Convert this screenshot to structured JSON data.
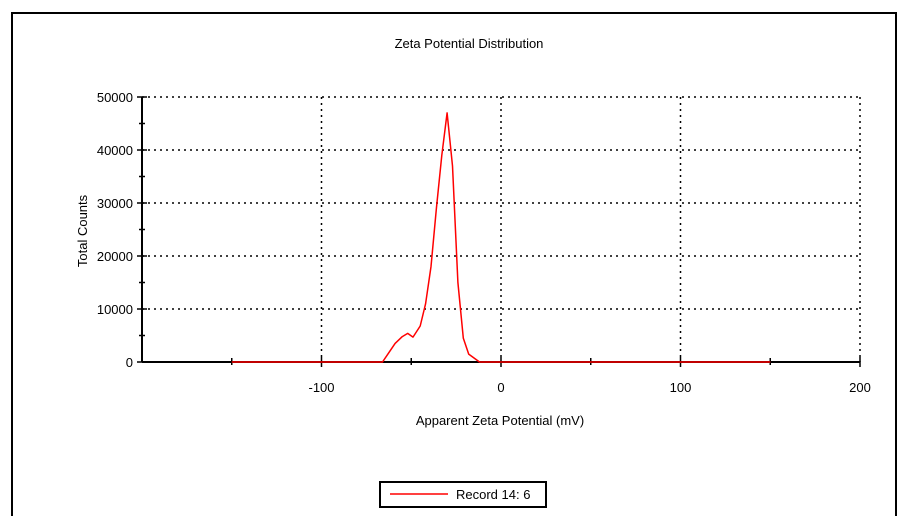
{
  "chart_data": {
    "type": "line",
    "title": "Zeta Potential Distribution",
    "xlabel": "Apparent Zeta Potential (mV)",
    "ylabel": "Total Counts",
    "xlim": [
      -200,
      200
    ],
    "ylim": [
      0,
      50000
    ],
    "x_ticks": [
      -100,
      0,
      100,
      200
    ],
    "x_tick_labels": [
      "-100",
      "0",
      "100",
      "200"
    ],
    "y_ticks": [
      0,
      10000,
      20000,
      30000,
      40000,
      50000
    ],
    "y_tick_labels": [
      "0",
      "10000",
      "20000",
      "30000",
      "40000",
      "50000"
    ],
    "grid": true,
    "legend_position": "bottom-center",
    "series": [
      {
        "name": "Record 14:  6",
        "color": "#ff0000",
        "x": [
          -150,
          -66,
          -63,
          -59,
          -55,
          -52,
          -49,
          -45,
          -42,
          -39,
          -36,
          -33,
          -30,
          -27,
          -24,
          -21,
          -18,
          -12,
          -8,
          0,
          150
        ],
        "y": [
          0,
          0,
          1500,
          3500,
          4800,
          5400,
          4700,
          6800,
          11000,
          18000,
          29000,
          39000,
          47000,
          37000,
          15000,
          4500,
          1500,
          0,
          0,
          0,
          0
        ]
      }
    ]
  }
}
